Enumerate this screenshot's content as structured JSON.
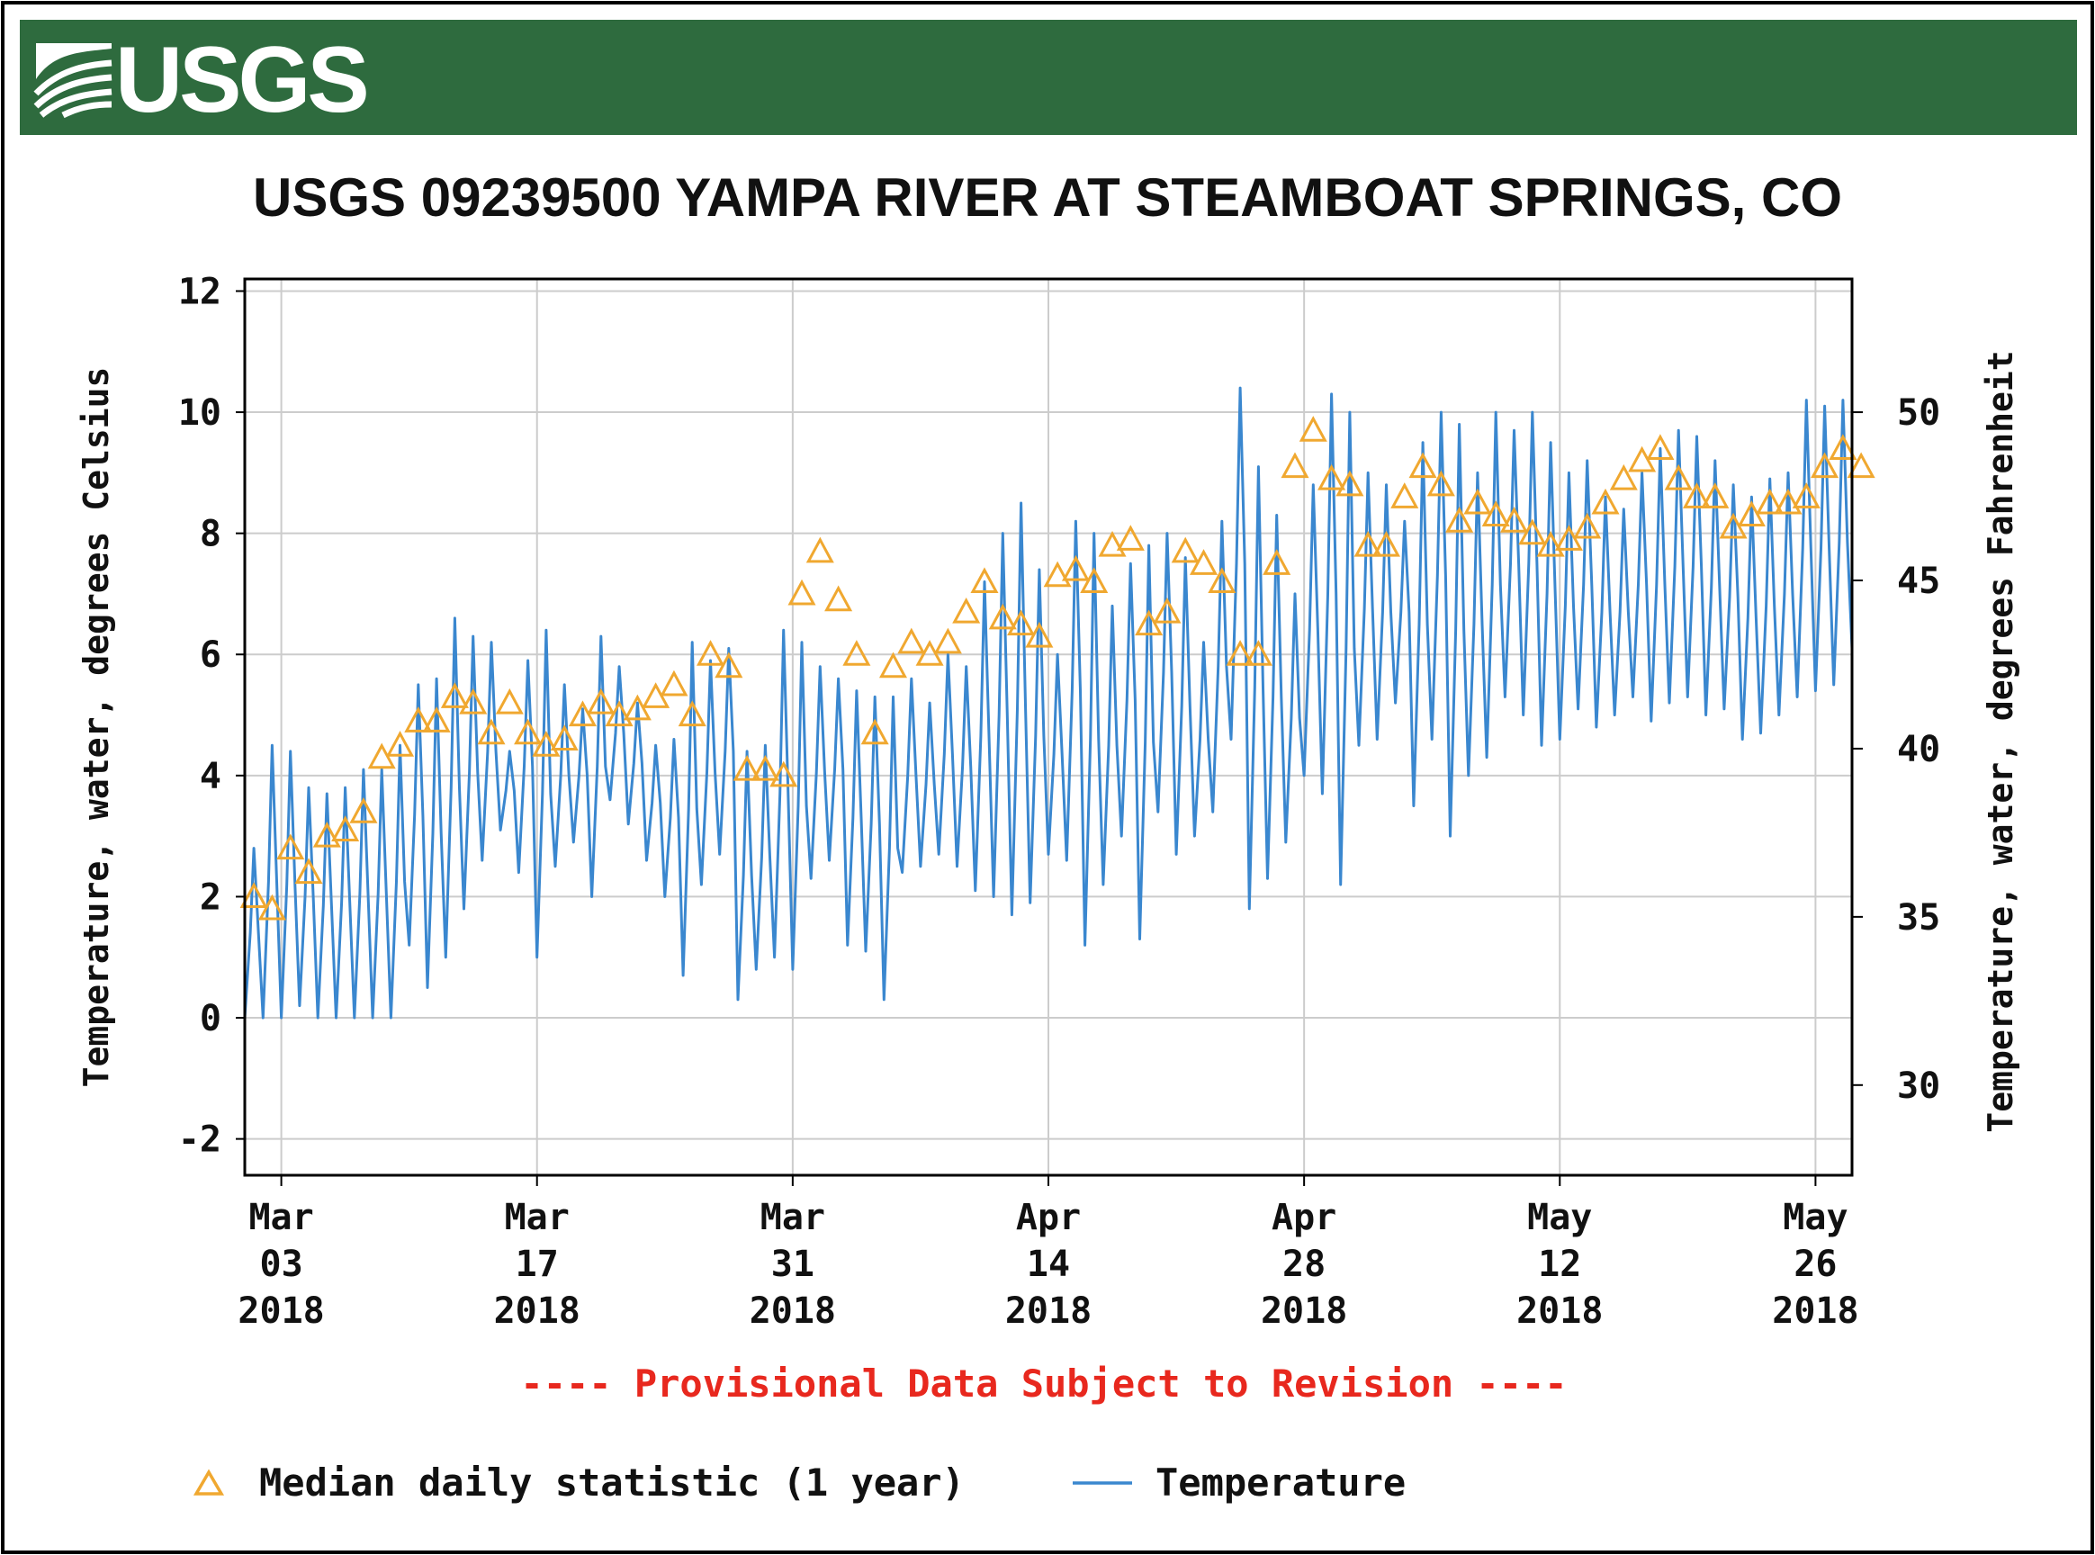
{
  "header": {
    "logo_text": "USGS",
    "logo_alt": "usgs-wave-logo",
    "bar_color": "#2e6b3e"
  },
  "chart_data": {
    "type": "line",
    "title": "USGS 09239500 YAMPA RIVER AT STEAMBOAT SPRINGS, CO",
    "ylabel": "Temperature, water, degrees Celsius",
    "ylabel_right": "Temperature, water, degrees Fahrenheit",
    "ylim": [
      -2.6,
      12.2
    ],
    "yticks": [
      -2,
      0,
      2,
      4,
      6,
      8,
      10,
      12
    ],
    "yticks_right": [
      30,
      35,
      40,
      45,
      50
    ],
    "x_start_date": "2018-03-01",
    "x_end_date": "2018-05-28",
    "x_tick_day_offsets": [
      2,
      16,
      30,
      44,
      58,
      72,
      86
    ],
    "x_tick_labels": [
      [
        "Mar",
        "03",
        "2018"
      ],
      [
        "Mar",
        "17",
        "2018"
      ],
      [
        "Mar",
        "31",
        "2018"
      ],
      [
        "Apr",
        "14",
        "2018"
      ],
      [
        "Apr",
        "28",
        "2018"
      ],
      [
        "May",
        "12",
        "2018"
      ],
      [
        "May",
        "26",
        "2018"
      ]
    ],
    "grid": true,
    "provisional_note": "---- Provisional Data Subject to Revision ----",
    "series": [
      {
        "name": "Temperature",
        "kind": "line",
        "color": "#3a87cf",
        "legend_label": "Temperature",
        "daily_min": [
          0.0,
          0.0,
          0.0,
          0.2,
          0.0,
          0.0,
          0.0,
          0.0,
          0.0,
          1.2,
          0.5,
          1.0,
          1.8,
          2.6,
          3.1,
          2.4,
          1.0,
          2.5,
          2.9,
          2.0,
          3.6,
          3.2,
          2.6,
          2.0,
          0.7,
          2.2,
          2.7,
          0.3,
          0.8,
          1.0,
          0.8,
          2.3,
          2.6,
          1.2,
          1.1,
          0.3,
          2.4,
          2.5,
          2.7,
          2.5,
          2.1,
          2.0,
          1.7,
          1.9,
          2.7,
          2.6,
          1.2,
          2.2,
          3.0,
          1.3,
          3.4,
          2.7,
          3.0,
          3.4,
          4.6,
          1.8,
          2.3,
          2.9,
          4.0,
          3.7,
          2.2,
          4.5,
          4.6,
          5.2,
          3.5,
          4.6,
          3.0,
          4.0,
          4.3,
          5.3,
          5.0,
          4.5,
          4.6,
          5.1,
          4.8,
          5.0,
          5.3,
          4.9,
          5.2,
          5.3,
          5.0,
          5.1,
          4.6,
          4.7,
          5.0,
          5.3,
          5.4,
          5.5
        ],
        "daily_max": [
          2.8,
          4.5,
          4.4,
          3.8,
          3.7,
          3.8,
          4.1,
          4.1,
          4.5,
          5.5,
          5.6,
          6.6,
          6.3,
          6.2,
          4.4,
          5.9,
          6.4,
          5.5,
          5.1,
          6.3,
          5.8,
          5.2,
          4.5,
          4.6,
          6.2,
          5.9,
          6.1,
          4.4,
          4.5,
          6.4,
          6.2,
          5.8,
          5.6,
          5.4,
          5.3,
          5.3,
          5.6,
          5.2,
          6.0,
          5.8,
          7.2,
          8.0,
          8.5,
          7.4,
          6.0,
          8.2,
          8.0,
          6.8,
          7.5,
          7.8,
          8.0,
          7.6,
          6.2,
          8.2,
          10.4,
          9.1,
          8.3,
          7.0,
          8.8,
          10.3,
          10.0,
          9.0,
          8.8,
          8.2,
          9.5,
          10.0,
          9.8,
          9.0,
          10.0,
          9.7,
          10.0,
          9.5,
          9.0,
          9.2,
          8.6,
          8.4,
          9.0,
          9.4,
          9.7,
          9.6,
          9.2,
          8.8,
          8.6,
          8.9,
          9.0,
          10.2,
          10.1,
          10.2
        ]
      },
      {
        "name": "Median daily statistic (1 year)",
        "kind": "markers",
        "marker": "triangle",
        "color": "#f0a830",
        "legend_label": "Median daily statistic (1 year)",
        "values": [
          2.0,
          1.8,
          2.8,
          2.4,
          3.0,
          3.1,
          3.4,
          4.3,
          4.5,
          4.9,
          4.9,
          5.3,
          5.2,
          4.7,
          5.2,
          4.7,
          4.5,
          4.6,
          5.0,
          5.2,
          5.0,
          5.1,
          5.3,
          5.5,
          5.0,
          6.0,
          5.8,
          4.1,
          4.1,
          4.0,
          7.0,
          7.7,
          6.9,
          6.0,
          4.7,
          5.8,
          6.2,
          6.0,
          6.2,
          6.7,
          7.2,
          6.6,
          6.5,
          6.3,
          7.3,
          7.4,
          7.2,
          7.8,
          7.9,
          6.5,
          6.7,
          7.7,
          7.5,
          7.2,
          6.0,
          6.0,
          7.5,
          9.1,
          9.7,
          8.9,
          8.8,
          7.8,
          7.8,
          8.6,
          9.1,
          8.8,
          8.2,
          8.5,
          8.3,
          8.2,
          8.0,
          7.8,
          7.9,
          8.1,
          8.5,
          8.9,
          9.2,
          9.4,
          8.9,
          8.6,
          8.6,
          8.1,
          8.3,
          8.5,
          8.5,
          8.6,
          9.1,
          9.4,
          9.1
        ]
      }
    ]
  }
}
